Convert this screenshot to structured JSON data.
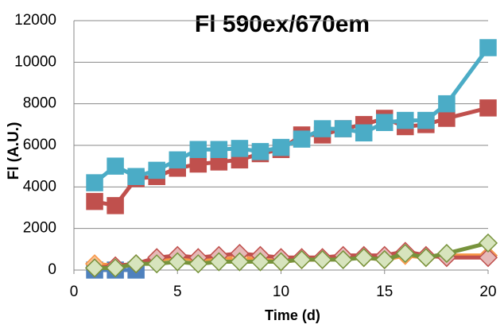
{
  "chart_data": {
    "type": "line",
    "title": "Fl 590ex/670em",
    "x_label": "Time (d)",
    "y_label": "Fl (A.U.)",
    "x": [
      1,
      2,
      3,
      4,
      5,
      6,
      7,
      8,
      9,
      10,
      11,
      12,
      13,
      14,
      15,
      16,
      17,
      18,
      20
    ],
    "xlim": [
      0,
      20
    ],
    "xticks": [
      0,
      5,
      10,
      15,
      20
    ],
    "ylim": [
      0,
      12000
    ],
    "yticks": [
      0,
      2000,
      4000,
      6000,
      8000,
      10000,
      12000
    ],
    "grid": true,
    "series": [
      {
        "color": "#4f81bd",
        "marker": "square",
        "marker_fill": "#4f81bd",
        "values": [
          0,
          0,
          0,
          null,
          null,
          null,
          null,
          null,
          null,
          null,
          null,
          null,
          null,
          null,
          null,
          null,
          null,
          null,
          null
        ]
      },
      {
        "color": "#c0504d",
        "marker": "square",
        "marker_fill": "#c0504d",
        "values": [
          3300,
          3100,
          4400,
          4500,
          4900,
          5100,
          5200,
          5300,
          5600,
          5800,
          6500,
          6500,
          6800,
          7000,
          7300,
          6900,
          7000,
          7300,
          7800
        ]
      },
      {
        "color": "#4bacc6",
        "marker": "square",
        "marker_fill": "#4bacc6",
        "values": [
          4200,
          5000,
          4500,
          4800,
          5300,
          5800,
          5800,
          5850,
          5700,
          5900,
          6300,
          6800,
          6800,
          6600,
          7100,
          7200,
          7200,
          8000,
          10700
        ]
      },
      {
        "color": "#f79646",
        "marker": "diamond",
        "marker_fill": "#fac090",
        "values": [
          300,
          200,
          300,
          500,
          600,
          500,
          500,
          600,
          500,
          400,
          500,
          500,
          600,
          600,
          500,
          700,
          600,
          700,
          700
        ]
      },
      {
        "color": "#c0504d",
        "marker": "diamond",
        "marker_fill": "#e6b9b8",
        "values": [
          100,
          200,
          300,
          600,
          700,
          600,
          700,
          800,
          700,
          600,
          600,
          600,
          700,
          700,
          700,
          900,
          700,
          600,
          600
        ]
      },
      {
        "color": "#77933c",
        "marker": "diamond",
        "marker_fill": "#d7e4bd",
        "values": [
          100,
          100,
          300,
          300,
          400,
          300,
          400,
          400,
          400,
          400,
          500,
          500,
          500,
          600,
          500,
          800,
          600,
          800,
          1300
        ]
      }
    ]
  }
}
